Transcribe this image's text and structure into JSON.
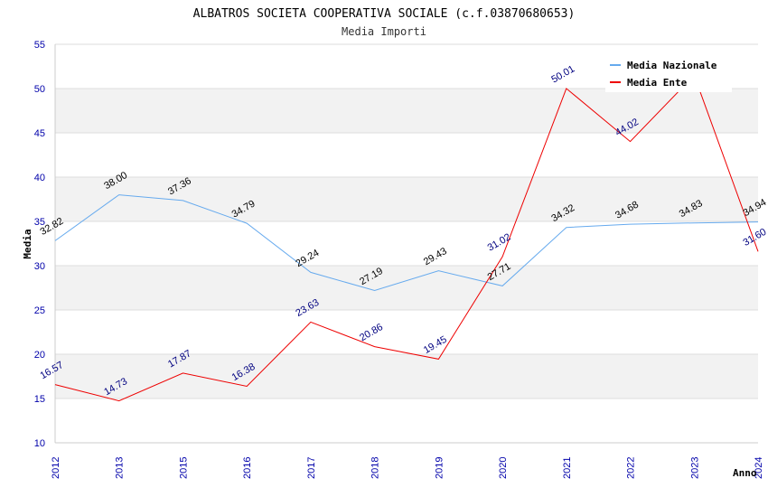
{
  "chart_data": {
    "type": "line",
    "title": "ALBATROS SOCIETA COOPERATIVA SOCIALE (c.f.03870680653)",
    "subtitle": "Media Importi",
    "xlabel": "Anno",
    "ylabel": "Media",
    "ylim": [
      10,
      55
    ],
    "ytick_step": 5,
    "grid": true,
    "legend_position": "top-right",
    "categories": [
      "2012",
      "2013",
      "2015",
      "2016",
      "2017",
      "2018",
      "2019",
      "2020",
      "2021",
      "2022",
      "2023",
      "2024"
    ],
    "series": [
      {
        "name": "Media Nazionale",
        "color": "#66aaee",
        "values": [
          32.82,
          38.0,
          37.36,
          34.79,
          29.24,
          27.19,
          29.43,
          27.71,
          34.32,
          34.68,
          34.83,
          34.94
        ],
        "labels": [
          "32.82",
          "38.00",
          "37.36",
          "34.79",
          "29.24",
          "27.19",
          "29.43",
          "27.71",
          "34.32",
          "34.68",
          "34.83",
          "34.94"
        ]
      },
      {
        "name": "Media Ente",
        "color": "#ee0000",
        "values": [
          16.57,
          14.73,
          17.87,
          16.38,
          23.63,
          20.86,
          19.45,
          31.02,
          50.01,
          44.02,
          51.5,
          31.6
        ],
        "labels": [
          "16.57",
          "14.73",
          "17.87",
          "16.38",
          "23.63",
          "20.86",
          "19.45",
          "31.02",
          "50.01",
          "44.02",
          "",
          "31.60"
        ]
      }
    ]
  }
}
